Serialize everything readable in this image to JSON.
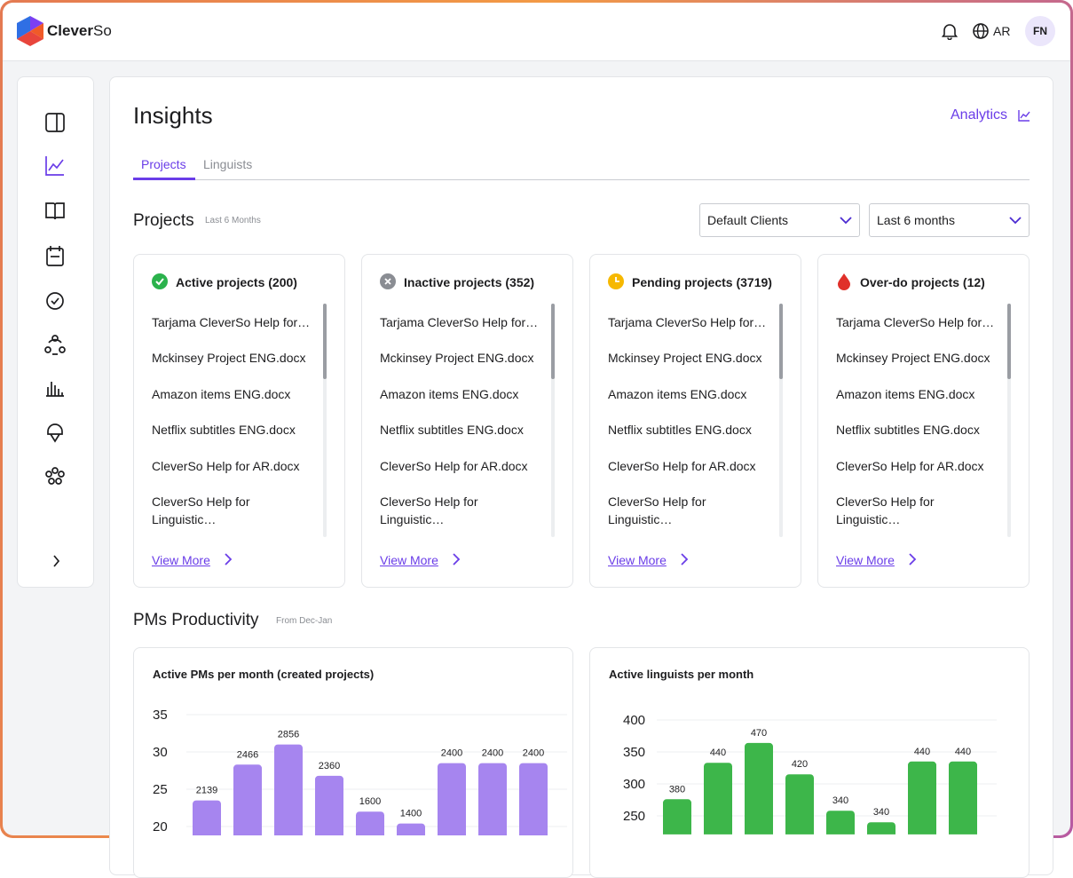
{
  "header": {
    "logo_a": "Clever",
    "logo_b": "So",
    "language": "AR",
    "avatar": "FN"
  },
  "page": {
    "title": "Insights",
    "analytics": "Analytics",
    "tabs": [
      "Projects",
      "Linguists"
    ]
  },
  "projects": {
    "title": "Projects",
    "subtitle": "Last 6 Months",
    "filters": [
      "Default Clients",
      "Last 6 months"
    ],
    "cards": [
      {
        "title": "Active projects (200)",
        "items": [
          "Tarjama CleverSo Help for…",
          "Mckinsey Project ENG.docx",
          "Amazon items ENG.docx",
          "Netflix subtitles ENG.docx",
          "CleverSo Help for AR.docx",
          "CleverSo Help for Linguistic…"
        ],
        "link": "View More"
      },
      {
        "title": "Inactive projects (352)",
        "items": [
          "Tarjama CleverSo Help for…",
          "Mckinsey Project ENG.docx",
          "Amazon items ENG.docx",
          "Netflix subtitles ENG.docx",
          "CleverSo Help for AR.docx",
          "CleverSo Help for Linguistic…"
        ],
        "link": "View More"
      },
      {
        "title": "Pending projects (3719)",
        "items": [
          "Tarjama CleverSo Help for…",
          "Mckinsey Project ENG.docx",
          "Amazon items ENG.docx",
          "Netflix subtitles ENG.docx",
          "CleverSo Help for AR.docx",
          "CleverSo Help for Linguistic…"
        ],
        "link": "View More"
      },
      {
        "title": "Over-do projects (12)",
        "items": [
          "Tarjama CleverSo Help for…",
          "Mckinsey Project ENG.docx",
          "Amazon items ENG.docx",
          "Netflix subtitles ENG.docx",
          "CleverSo Help for AR.docx",
          "CleverSo Help for Linguistic…"
        ],
        "link": "View More"
      }
    ]
  },
  "productivity": {
    "title": "PMs Productivity",
    "subtitle": "From Dec-Jan"
  },
  "chart_data": [
    {
      "type": "bar",
      "title": "Active PMs per month (created projects)",
      "color": "#a685ef",
      "values": [
        23.5,
        28.3,
        31,
        26.8,
        22,
        20.4,
        28.5,
        28.5,
        28.5
      ],
      "annotations": [
        "2139",
        "2466",
        "2856",
        "2360",
        "1600",
        "1400",
        "2400",
        "2400",
        "2400"
      ],
      "ylim": [
        18.8,
        35
      ],
      "yticks": [
        20,
        25,
        30,
        35
      ],
      "grid": true
    },
    {
      "type": "bar",
      "title": "Active linguists per month",
      "color": "#3db64a",
      "values": [
        276,
        333,
        364,
        315,
        258,
        240,
        335,
        335
      ],
      "annotations": [
        "380",
        "440",
        "470",
        "420",
        "340",
        "340",
        "440",
        "440"
      ],
      "ylim": [
        221,
        400
      ],
      "yticks": [
        250,
        300,
        350,
        400
      ],
      "grid": true
    }
  ]
}
